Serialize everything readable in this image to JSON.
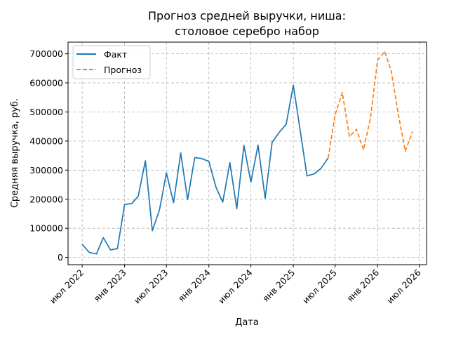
{
  "chart_data": {
    "type": "line",
    "title_lines": [
      "Прогноз средней выручки, ниша:",
      "столовое серебро набор"
    ],
    "xlabel": "Дата",
    "ylabel": "Средняя выручка, руб.",
    "x_ticks": [
      {
        "date": "2022-07-01",
        "label": "июл 2022"
      },
      {
        "date": "2023-01-01",
        "label": "янв 2023"
      },
      {
        "date": "2023-07-01",
        "label": "июл 2023"
      },
      {
        "date": "2024-01-01",
        "label": "янв 2024"
      },
      {
        "date": "2024-07-01",
        "label": "июл 2024"
      },
      {
        "date": "2025-01-01",
        "label": "янв 2025"
      },
      {
        "date": "2025-07-01",
        "label": "июл 2025"
      },
      {
        "date": "2026-01-01",
        "label": "янв 2026"
      },
      {
        "date": "2026-07-01",
        "label": "июл 2026"
      }
    ],
    "y_ticks": [
      0,
      100000,
      200000,
      300000,
      400000,
      500000,
      600000,
      700000
    ],
    "xlim": [
      "2022-05-01",
      "2026-08-01"
    ],
    "ylim": [
      -25000,
      740000
    ],
    "grid": true,
    "legend_position": "top-left",
    "series": [
      {
        "name": "Факт",
        "color": "#1f77b4",
        "style": "solid",
        "points": [
          [
            "2022-07-01",
            45000
          ],
          [
            "2022-08-01",
            17000
          ],
          [
            "2022-09-01",
            12000
          ],
          [
            "2022-10-01",
            68000
          ],
          [
            "2022-11-01",
            26000
          ],
          [
            "2022-12-01",
            30000
          ],
          [
            "2023-01-01",
            182000
          ],
          [
            "2023-02-01",
            185000
          ],
          [
            "2023-03-01",
            210000
          ],
          [
            "2023-04-01",
            332000
          ],
          [
            "2023-05-01",
            92000
          ],
          [
            "2023-06-01",
            163000
          ],
          [
            "2023-07-01",
            291000
          ],
          [
            "2023-08-01",
            188000
          ],
          [
            "2023-09-01",
            359000
          ],
          [
            "2023-10-01",
            199000
          ],
          [
            "2023-11-01",
            343000
          ],
          [
            "2023-12-01",
            340000
          ],
          [
            "2024-01-01",
            330000
          ],
          [
            "2024-02-01",
            241000
          ],
          [
            "2024-03-01",
            190000
          ],
          [
            "2024-04-01",
            326000
          ],
          [
            "2024-05-01",
            167000
          ],
          [
            "2024-06-01",
            385000
          ],
          [
            "2024-07-01",
            259000
          ],
          [
            "2024-08-01",
            386000
          ],
          [
            "2024-09-01",
            203000
          ],
          [
            "2024-10-01",
            396000
          ],
          [
            "2024-11-01",
            430000
          ],
          [
            "2024-12-01",
            458000
          ],
          [
            "2025-01-01",
            592000
          ],
          [
            "2025-02-01",
            430000
          ],
          [
            "2025-03-01",
            280000
          ],
          [
            "2025-04-01",
            287000
          ],
          [
            "2025-05-01",
            306000
          ],
          [
            "2025-06-01",
            342000
          ]
        ]
      },
      {
        "name": "Прогноз",
        "color": "#ff7f0e",
        "style": "dashed",
        "points": [
          [
            "2025-06-01",
            342000
          ],
          [
            "2025-07-01",
            490000
          ],
          [
            "2025-08-01",
            567000
          ],
          [
            "2025-09-01",
            415000
          ],
          [
            "2025-10-01",
            440000
          ],
          [
            "2025-11-01",
            370000
          ],
          [
            "2025-12-01",
            478000
          ],
          [
            "2026-01-01",
            678000
          ],
          [
            "2026-02-01",
            708000
          ],
          [
            "2026-03-01",
            640000
          ],
          [
            "2026-04-01",
            490000
          ],
          [
            "2026-05-01",
            365000
          ],
          [
            "2026-06-01",
            432000
          ]
        ]
      }
    ]
  }
}
